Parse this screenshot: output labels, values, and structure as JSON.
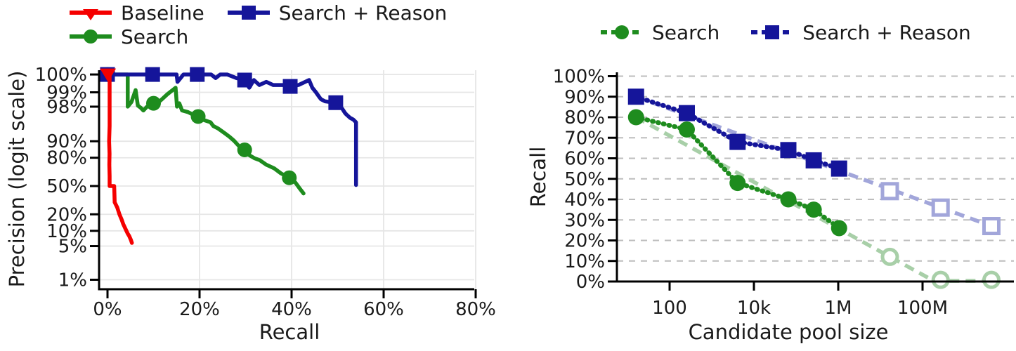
{
  "colors": {
    "baseline_red": "#f50000",
    "search_green": "#1e8c1e",
    "reason_blue": "#15159a",
    "trend_green_light": "#a8cfa8",
    "trend_blue_light": "#a2a6da",
    "grid_left": "#e6e6e6",
    "grid_right": "#bdbdbd",
    "axis_black": "#000000",
    "text": "#1a1a1a"
  },
  "chart_data": [
    {
      "type": "line",
      "title": "",
      "xlabel": "Recall",
      "ylabel": "Precision (logit scale)",
      "x_scale": "linear_percent",
      "y_scale": "logit_percent",
      "xlim": [
        0,
        80
      ],
      "ylim": [
        1,
        100
      ],
      "x_tick_values": [
        0,
        20,
        40,
        60,
        80
      ],
      "x_tick_labels": [
        "0%",
        "20%",
        "40%",
        "60%",
        "80%"
      ],
      "y_tick_values": [
        100,
        99,
        98,
        90,
        80,
        50,
        20,
        10,
        5,
        1
      ],
      "y_tick_labels": [
        "100%",
        "99%",
        "98%",
        "90%",
        "80%",
        "50%",
        "20%",
        "10%",
        "5%",
        "1%"
      ],
      "grid": "solid",
      "legend_position": "top-left",
      "series": [
        {
          "name": "Search",
          "color": "#1e8c1e",
          "marker": "circle",
          "line_style": "solid",
          "points": [
            [
              0,
              100
            ],
            [
              4.4,
              100
            ],
            [
              4.4,
              98
            ],
            [
              5.2,
              98.4
            ],
            [
              6.1,
              99.1
            ],
            [
              6.6,
              98.1
            ],
            [
              7.2,
              97.9
            ],
            [
              7.8,
              97.6
            ],
            [
              8.6,
              98.0
            ],
            [
              10,
              98.3
            ],
            [
              11.5,
              98.5
            ],
            [
              13,
              98.9
            ],
            [
              14.8,
              99.2
            ],
            [
              15.1,
              98.0
            ],
            [
              15.6,
              98.3
            ],
            [
              16.2,
              97.6
            ],
            [
              17.5,
              97.4
            ],
            [
              18.5,
              97.1
            ],
            [
              19.7,
              96.8
            ],
            [
              21,
              96.2
            ],
            [
              22.4,
              95.8
            ],
            [
              23,
              95.0
            ],
            [
              24,
              94.4
            ],
            [
              25.5,
              93
            ],
            [
              26.5,
              91.8
            ],
            [
              27.5,
              90.2
            ],
            [
              28.5,
              87.8
            ],
            [
              29.8,
              85.5
            ],
            [
              30.8,
              82
            ],
            [
              32,
              79.5
            ],
            [
              33.1,
              78
            ],
            [
              34.5,
              74
            ],
            [
              36.2,
              70.5
            ],
            [
              37.7,
              65
            ],
            [
              39.5,
              60
            ],
            [
              40.8,
              54.5
            ],
            [
              41.7,
              47.5
            ],
            [
              42.6,
              41
            ]
          ],
          "marker_points": [
            [
              0,
              100
            ],
            [
              10,
              98.3
            ],
            [
              19.7,
              96.8
            ],
            [
              29.8,
              85.5
            ],
            [
              39.5,
              60
            ]
          ]
        },
        {
          "name": "Search + Reason",
          "color": "#15159a",
          "marker": "square",
          "line_style": "solid",
          "points": [
            [
              0,
              100
            ],
            [
              15,
              100
            ],
            [
              15.2,
              99.4
            ],
            [
              16.5,
              99.6
            ],
            [
              18.5,
              99.85
            ],
            [
              19.5,
              100
            ],
            [
              22.5,
              100
            ],
            [
              23.5,
              99.5
            ],
            [
              24.5,
              99.9
            ],
            [
              26,
              99.8
            ],
            [
              28,
              99.5
            ],
            [
              29.8,
              99.45
            ],
            [
              30.8,
              99.2
            ],
            [
              31.8,
              99.45
            ],
            [
              33,
              99.3
            ],
            [
              34.5,
              99.4
            ],
            [
              36,
              99.3
            ],
            [
              38,
              99.3
            ],
            [
              39.7,
              99.25
            ],
            [
              41.5,
              99.3
            ],
            [
              43.8,
              99.45
            ],
            [
              44.5,
              99.2
            ],
            [
              45.3,
              99.0
            ],
            [
              46,
              98.75
            ],
            [
              46.4,
              98.6
            ],
            [
              47.3,
              98.45
            ],
            [
              48.3,
              98.4
            ],
            [
              49.6,
              98.35
            ],
            [
              50.5,
              98.0
            ],
            [
              51,
              97.8
            ],
            [
              51.6,
              97.3
            ],
            [
              51.9,
              97.1
            ],
            [
              52.4,
              96.8
            ],
            [
              52.7,
              96.6
            ],
            [
              53.4,
              96.3
            ],
            [
              54,
              95.8
            ],
            [
              54,
              51.3
            ]
          ],
          "marker_points": [
            [
              0,
              100
            ],
            [
              9.8,
              100
            ],
            [
              19.5,
              100
            ],
            [
              29.8,
              99.45
            ],
            [
              39.7,
              99.25
            ],
            [
              49.6,
              98.35
            ]
          ]
        },
        {
          "name": "Baseline",
          "color": "#f50000",
          "marker": "triangle-down",
          "line_style": "solid",
          "points": [
            [
              0.1,
              100
            ],
            [
              0.46,
              100
            ],
            [
              0.46,
              95
            ],
            [
              0.35,
              90
            ],
            [
              0.45,
              83
            ],
            [
              0.4,
              74
            ],
            [
              0.46,
              62
            ],
            [
              0.46,
              50
            ],
            [
              1.45,
              50
            ],
            [
              1.5,
              42
            ],
            [
              1.55,
              31
            ],
            [
              2.1,
              26
            ],
            [
              2.6,
              20
            ],
            [
              3.1,
              16
            ],
            [
              3.4,
              13.5
            ],
            [
              4.1,
              10
            ],
            [
              4.4,
              8.8
            ],
            [
              4.7,
              8
            ],
            [
              5.1,
              6.6
            ],
            [
              5.3,
              5.8
            ]
          ],
          "marker_points": [
            [
              0.1,
              100
            ]
          ]
        }
      ]
    },
    {
      "type": "line",
      "title": "",
      "xlabel": "Candidate pool size",
      "ylabel": "Recall",
      "x_scale": "log",
      "y_scale": "linear_percent",
      "ylim": [
        0,
        100
      ],
      "x_tick_values": [
        100,
        10000,
        1000000,
        100000000
      ],
      "x_tick_labels": [
        "100",
        "10k",
        "1M",
        "100M"
      ],
      "y_tick_values": [
        0,
        10,
        20,
        30,
        40,
        50,
        60,
        70,
        80,
        90,
        100
      ],
      "y_tick_labels": [
        "0%",
        "10%",
        "20%",
        "30%",
        "40%",
        "50%",
        "60%",
        "70%",
        "80%",
        "90%",
        "100%"
      ],
      "grid": "dashed-horizontal",
      "legend_position": "top-center",
      "series": [
        {
          "name": "Search",
          "color": "#1e8c1e",
          "trend_color": "#a8cfa8",
          "marker": "circle",
          "line_style": "dotted",
          "solid_points": [
            [
              16,
              80
            ],
            [
              256,
              74
            ],
            [
              4096,
              48
            ],
            [
              65536,
              40
            ],
            [
              262144,
              35
            ],
            [
              1048576,
              26
            ]
          ],
          "open_points": [
            [
              16777216,
              12
            ],
            [
              268435456,
              0.8
            ],
            [
              4294967296,
              0.8
            ]
          ],
          "trend_points": [
            [
              16,
              80
            ],
            [
              185000000,
              0.3
            ],
            [
              4294967296,
              0.3
            ]
          ]
        },
        {
          "name": "Search + Reason",
          "color": "#15159a",
          "trend_color": "#a2a6da",
          "marker": "square",
          "line_style": "dotted",
          "solid_points": [
            [
              16,
              90
            ],
            [
              256,
              82
            ],
            [
              4096,
              68
            ],
            [
              65536,
              64
            ],
            [
              262144,
              59
            ],
            [
              1048576,
              55
            ]
          ],
          "open_points": [
            [
              16777216,
              44
            ],
            [
              268435456,
              36
            ],
            [
              4294967296,
              27
            ]
          ],
          "trend_points": [
            [
              16,
              90
            ],
            [
              4294967296,
              27
            ]
          ]
        }
      ]
    }
  ]
}
